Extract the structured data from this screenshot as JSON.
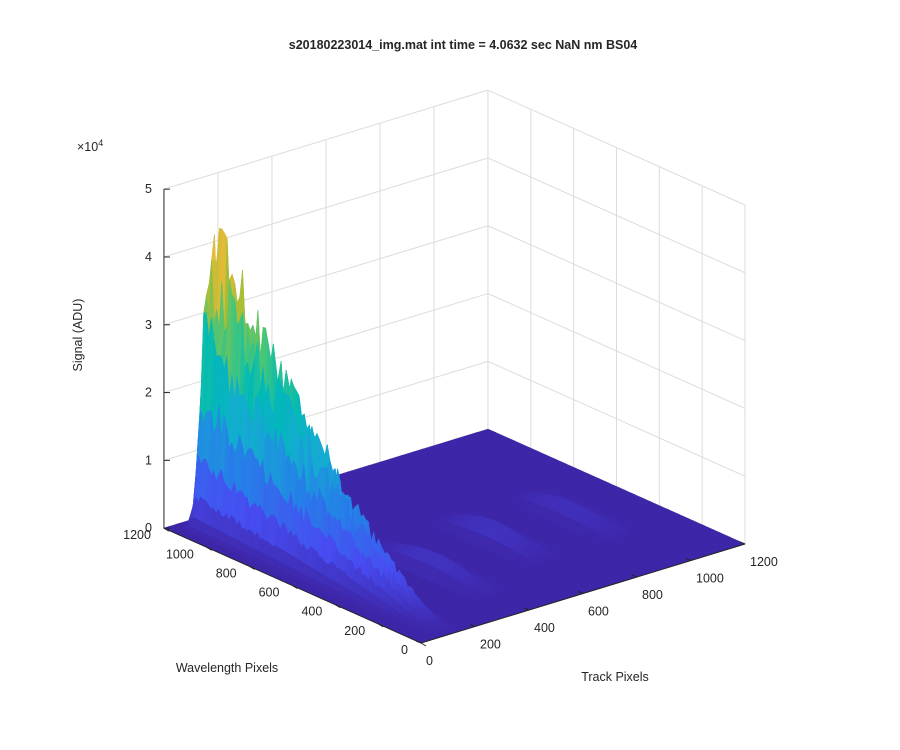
{
  "chart_data": {
    "type": "surface",
    "title": "s20180223014_img.mat int time = 4.0632 sec  NaN nm BS04",
    "xlabel": "Track Pixels",
    "ylabel": "Wavelength Pixels",
    "zlabel": "Signal (ADU)",
    "z_exponent_label": "×10",
    "z_exponent_power": "4",
    "xlim": [
      0,
      1200
    ],
    "ylim": [
      0,
      1200
    ],
    "zlim": [
      0,
      5
    ],
    "x_ticks": [
      "0",
      "200",
      "400",
      "600",
      "800",
      "1000",
      "1200"
    ],
    "y_ticks": [
      "0",
      "200",
      "400",
      "600",
      "800",
      "1000",
      "1200"
    ],
    "z_ticks": [
      "0",
      "1",
      "2",
      "3",
      "4",
      "5"
    ],
    "grid": true,
    "colormap": "parula",
    "ridges": [
      {
        "track_center": 110,
        "band_width": 45,
        "peak_x1e4": 4.5,
        "wavelength_range": [
          0,
          1150
        ]
      },
      {
        "track_center": 390,
        "band_width": 50,
        "peak_x1e4": 0.25,
        "wavelength_range": [
          150,
          700
        ]
      },
      {
        "track_center": 680,
        "band_width": 50,
        "peak_x1e4": 0.25,
        "wavelength_range": [
          250,
          750
        ]
      },
      {
        "track_center": 960,
        "band_width": 50,
        "peak_x1e4": 0.2,
        "wavelength_range": [
          250,
          750
        ]
      }
    ],
    "background_x1e4": 0.0
  }
}
